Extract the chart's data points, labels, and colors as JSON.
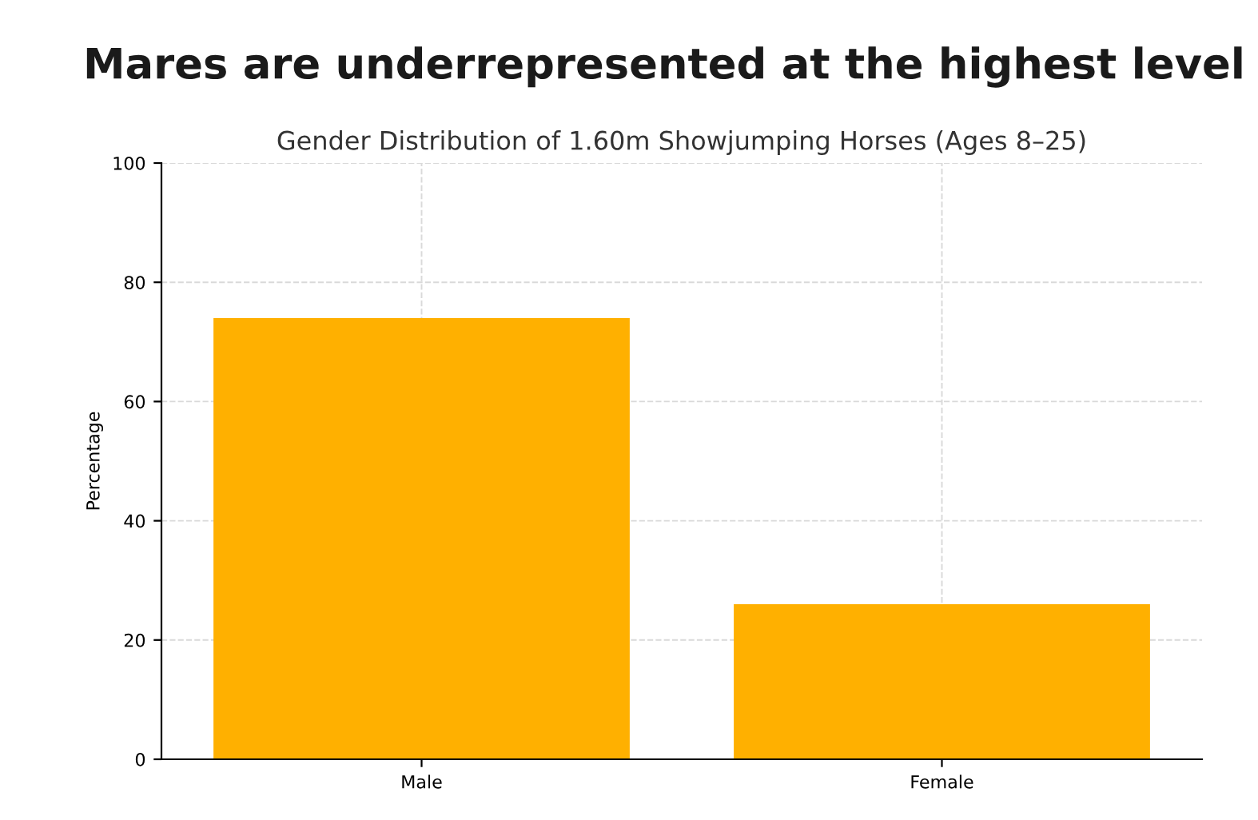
{
  "chart_data": {
    "type": "bar",
    "title": "Mares are underrepresented at the highest level",
    "subtitle": "Gender Distribution of 1.60m Showjumping Horses (Ages 8–25)",
    "ylabel": "Percentage",
    "categories": [
      "Male",
      "Female"
    ],
    "values": [
      74,
      26
    ],
    "color": "#ffb000",
    "ylim": [
      0,
      100
    ],
    "yticks": [
      0,
      20,
      40,
      60,
      80,
      100
    ],
    "grid": true
  }
}
